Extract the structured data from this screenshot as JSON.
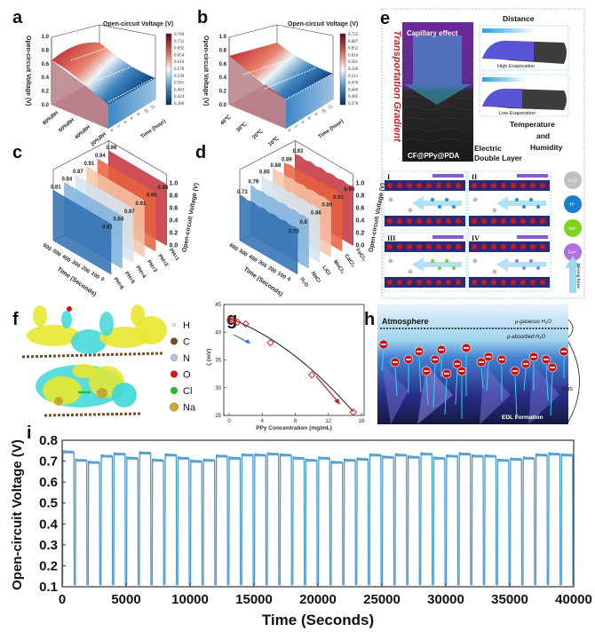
{
  "panel_labels": {
    "a": "a",
    "b": "b",
    "c": "c",
    "d": "d",
    "e": "e",
    "f": "f",
    "g": "g",
    "h": "h",
    "i": "i"
  },
  "panel_a": {
    "colorbar_title": "Open-circuit Voltage (V)",
    "z_label": "Open-circuit Voltage (V)",
    "z_ticks": [
      "0.0",
      "0.2",
      "0.4",
      "0.6",
      "0.8",
      "1.0"
    ],
    "humidity_ticks": [
      "80%RH",
      "60%RH",
      "40%RH",
      "20%RH"
    ],
    "time_label": "Time (hour)",
    "time_ticks": [
      "0",
      "2",
      "4",
      "6",
      "8",
      "10",
      "12"
    ],
    "colorbar_ticks": [
      "0.769",
      "0.731",
      "0.692",
      "0.654",
      "0.616",
      "0.578",
      "0.539",
      "0.501",
      "0.463",
      "0.424",
      "0.386"
    ]
  },
  "panel_b": {
    "colorbar_title": "Open-circuit Voltage (V)",
    "z_label": "Open-circuit Voltage (V)",
    "z_ticks": [
      "0.0",
      "0.2",
      "0.4",
      "0.6",
      "0.8",
      "1.0"
    ],
    "temperature_ticks": [
      "40℃",
      "30℃",
      "20℃",
      "10℃"
    ],
    "time_label": "Time (hour)",
    "time_ticks": [
      "0",
      "2",
      "4",
      "6",
      "8",
      "10",
      "12"
    ],
    "colorbar_ticks": [
      "0.722",
      "0.687",
      "0.652",
      "0.616",
      "0.581",
      "0.546",
      "0.511",
      "0.476",
      "0.440",
      "0.405",
      "0.370"
    ]
  },
  "panel_c": {
    "z_label": "Open-circuit Voltage (V)",
    "z_ticks": [
      "0.0",
      "0.2",
      "0.4",
      "0.6",
      "0.8",
      "1.0"
    ],
    "time_label": "Time (Seconds)",
    "time_ticks": [
      "600",
      "500",
      "400",
      "300",
      "200",
      "100",
      "0"
    ],
    "series": [
      {
        "name": "PH=6",
        "start": 0.81,
        "end": 0.81,
        "color": "#2f6fb0"
      },
      {
        "name": "PH=5",
        "start": 0.84,
        "end": 0.84,
        "color": "#7fb2dc"
      },
      {
        "name": "PH=4",
        "start": 0.87,
        "end": 0.87,
        "color": "#d3e4f1"
      },
      {
        "name": "PH=3",
        "start": 0.91,
        "end": 0.91,
        "color": "#f6c4a6"
      },
      {
        "name": "PH=2",
        "start": 0.94,
        "end": 0.95,
        "color": "#e8603e"
      },
      {
        "name": "PH=1",
        "start": 0.98,
        "end": 0.98,
        "color": "#c4303a"
      }
    ]
  },
  "panel_d": {
    "z_label": "Open-circuit Voltage (V)",
    "z_ticks": [
      "0.0",
      "0.2",
      "0.4",
      "0.6",
      "0.8",
      "1.0"
    ],
    "time_label": "Time (Seconds)",
    "time_ticks": [
      "600",
      "500",
      "400",
      "300",
      "200",
      "100",
      "0"
    ],
    "series": [
      {
        "name": "H₂O",
        "start": 0.73,
        "end": 0.73,
        "color": "#2f6fb0"
      },
      {
        "name": "NaCl",
        "start": 0.79,
        "end": 0.8,
        "color": "#7fb2dc"
      },
      {
        "name": "LiCl",
        "start": 0.85,
        "end": 0.86,
        "color": "#d3e4f1"
      },
      {
        "name": "MnCl₂",
        "start": 0.88,
        "end": 0.89,
        "color": "#f6c4a6"
      },
      {
        "name": "CaCl₂",
        "start": 0.89,
        "end": 0.91,
        "color": "#e8603e"
      },
      {
        "name": "FeCl₃",
        "start": 0.93,
        "end": 0.94,
        "color": "#c4303a"
      }
    ]
  },
  "panel_e": {
    "side_title": "Transportation Gradient",
    "capillary": "Capillary effect",
    "distance": "Distance",
    "high_evap": "High Evaporation",
    "low_evap": "Low Evaporation",
    "temp_humidity_1": "Temperature",
    "temp_humidity_2": "and",
    "temp_humidity_3": "Humidity",
    "material": "CF@PPy@PDA",
    "edl_1": "Electric",
    "edl_2": "Double Layer",
    "sub_labels": [
      "I",
      "II",
      "III",
      "IV"
    ],
    "legend": [
      "H₂O",
      "H⁺",
      "Na⁺",
      "Fe³⁺"
    ],
    "driving_force": "Driving force"
  },
  "panel_f": {
    "legend": [
      {
        "symbol": "H",
        "color": "#f0e6e6"
      },
      {
        "symbol": "C",
        "color": "#7a4a25"
      },
      {
        "symbol": "N",
        "color": "#b9bfe0"
      },
      {
        "symbol": "O",
        "color": "#e01010"
      },
      {
        "symbol": "Cl",
        "color": "#22c022"
      },
      {
        "symbol": "Na",
        "color": "#c8a830"
      }
    ]
  },
  "panel_h": {
    "atmosphere": "Atmosphere",
    "gaseous": "μ-gaseous H₂O",
    "absorbed": "μ-absorbed H₂O",
    "ions": "ions",
    "edl": "EDL Formation"
  },
  "chart_data": [
    {
      "panel": "g",
      "type": "scatter",
      "xlabel": "PPy Concentration (mg/mL)",
      "ylabel": "ζ (mV)",
      "xlim": [
        0,
        16
      ],
      "ylim": [
        25,
        45
      ],
      "x_ticks": [
        "0",
        "4",
        "8",
        "12",
        "16"
      ],
      "y_ticks": [
        "25",
        "30",
        "35",
        "40",
        "45"
      ],
      "x": [
        0.1,
        0.5,
        1,
        2,
        5,
        10,
        15
      ],
      "y": [
        42.2,
        42.1,
        41.8,
        41.5,
        38.1,
        32.3,
        25.6
      ],
      "fit_line": true,
      "marker_color": "#e02020",
      "arrows": [
        "blue",
        "red"
      ]
    },
    {
      "panel": "i",
      "type": "line",
      "xlabel": "Time (Seconds)",
      "ylabel": "Open-circuit Voltage (V)",
      "xlim": [
        0,
        40000
      ],
      "ylim": [
        0.1,
        0.8
      ],
      "x_ticks": [
        "0",
        "5000",
        "10000",
        "15000",
        "20000",
        "25000",
        "30000",
        "35000",
        "40000"
      ],
      "y_ticks": [
        "0.1",
        "0.2",
        "0.3",
        "0.4",
        "0.5",
        "0.6",
        "0.7",
        "0.8"
      ],
      "baseline_V": 0.11,
      "pulse_plateaus_V": [
        0.75,
        0.71,
        0.7,
        0.73,
        0.74,
        0.72,
        0.745,
        0.71,
        0.735,
        0.72,
        0.705,
        0.71,
        0.73,
        0.72,
        0.735,
        0.735,
        0.74,
        0.735,
        0.72,
        0.71,
        0.72,
        0.7,
        0.71,
        0.715,
        0.735,
        0.725,
        0.735,
        0.725,
        0.74,
        0.72,
        0.73,
        0.74,
        0.73,
        0.73,
        0.71,
        0.715,
        0.72,
        0.735,
        0.74,
        0.735
      ],
      "color": "#4a9ad0"
    }
  ]
}
